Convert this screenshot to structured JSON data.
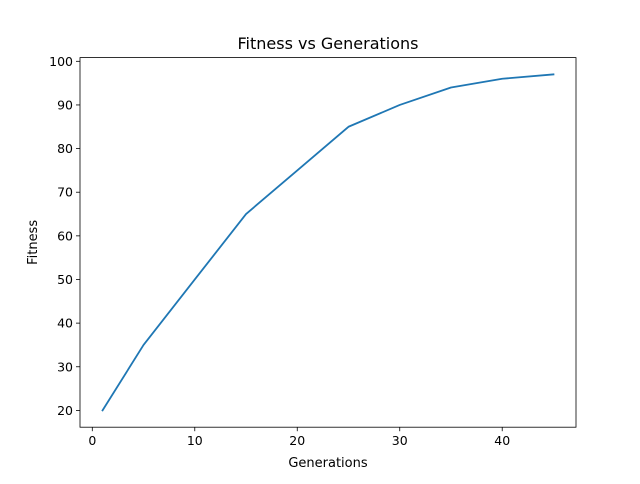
{
  "chart_data": {
    "type": "line",
    "title": "Fitness vs Generations",
    "xlabel": "Generations",
    "ylabel": "Fitness",
    "xlim": [
      -1.2,
      47.2
    ],
    "ylim": [
      16.15,
      100.85
    ],
    "x_ticks": [
      0,
      10,
      20,
      30,
      40
    ],
    "y_ticks": [
      20,
      30,
      40,
      50,
      60,
      70,
      80,
      90,
      100
    ],
    "grid": false,
    "series": [
      {
        "color": "#1f77b4",
        "x": [
          1,
          5,
          10,
          15,
          20,
          25,
          30,
          35,
          40,
          45
        ],
        "y": [
          20,
          35,
          50,
          65,
          75,
          85,
          90,
          94,
          96,
          97
        ]
      }
    ]
  }
}
